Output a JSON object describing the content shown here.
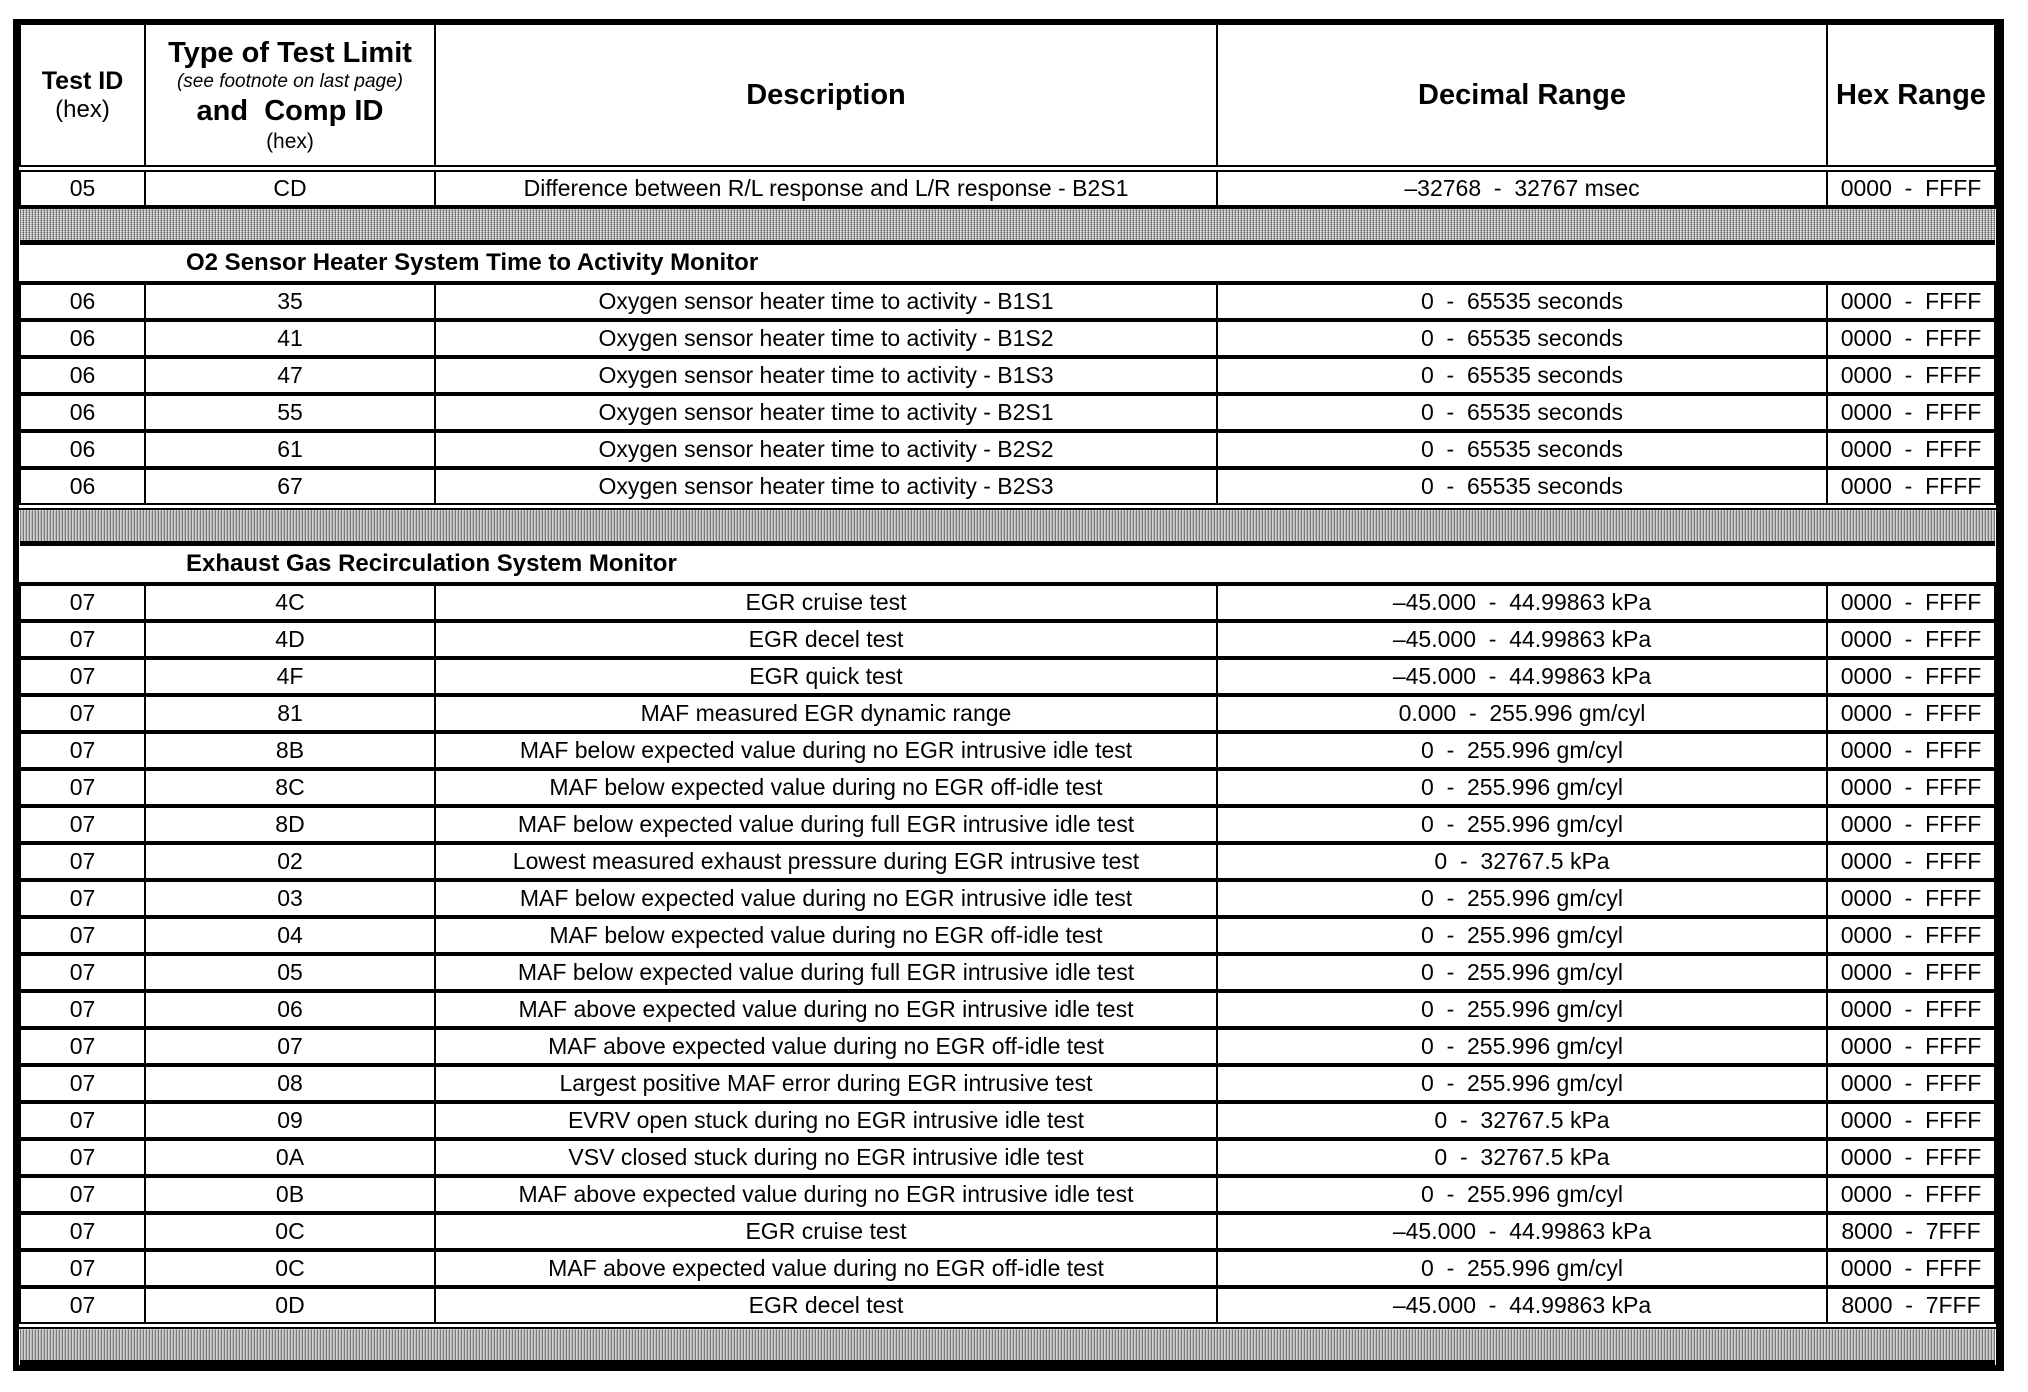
{
  "header": {
    "test_id": "Test ID",
    "test_id_sub": "(hex)",
    "type_limit": "Type of Test Limit",
    "type_limit_note": "(see footnote on last page)",
    "comp_id": "and  Comp ID",
    "comp_id_sub": "(hex)",
    "description": "Description",
    "decimal_range": "Decimal Range",
    "hex_range": "Hex Range"
  },
  "top_rows": [
    {
      "tid": "05",
      "cid": "CD",
      "desc": "Difference between R/L response and L/R response - B2S1",
      "dec": "–32768  -  32767 msec",
      "hex": "0000  -  FFFF"
    }
  ],
  "sections": [
    {
      "title": "O2 Sensor Heater System Time to Activity Monitor",
      "rows": [
        {
          "tid": "06",
          "cid": "35",
          "desc": "Oxygen sensor heater time to activity - B1S1",
          "dec": "0  -  65535 seconds",
          "hex": "0000  -  FFFF"
        },
        {
          "tid": "06",
          "cid": "41",
          "desc": "Oxygen sensor heater time to activity - B1S2",
          "dec": "0  -  65535 seconds",
          "hex": "0000  -  FFFF"
        },
        {
          "tid": "06",
          "cid": "47",
          "desc": "Oxygen sensor heater time to activity - B1S3",
          "dec": "0  -  65535 seconds",
          "hex": "0000  -  FFFF"
        },
        {
          "tid": "06",
          "cid": "55",
          "desc": "Oxygen sensor heater time to activity - B2S1",
          "dec": "0  -  65535 seconds",
          "hex": "0000  -  FFFF"
        },
        {
          "tid": "06",
          "cid": "61",
          "desc": "Oxygen sensor heater time to activity - B2S2",
          "dec": "0  -  65535 seconds",
          "hex": "0000  -  FFFF"
        },
        {
          "tid": "06",
          "cid": "67",
          "desc": "Oxygen sensor heater time to activity - B2S3",
          "dec": "0  -  65535 seconds",
          "hex": "0000  -  FFFF"
        }
      ]
    },
    {
      "title": "Exhaust Gas Recirculation System Monitor",
      "rows": [
        {
          "tid": "07",
          "cid": "4C",
          "desc": "EGR cruise test",
          "dec": "–45.000  -  44.99863 kPa",
          "hex": "0000  -  FFFF"
        },
        {
          "tid": "07",
          "cid": "4D",
          "desc": "EGR decel test",
          "dec": "–45.000  -  44.99863 kPa",
          "hex": "0000  -  FFFF"
        },
        {
          "tid": "07",
          "cid": "4F",
          "desc": "EGR quick test",
          "dec": "–45.000  -  44.99863 kPa",
          "hex": "0000  -  FFFF"
        },
        {
          "tid": "07",
          "cid": "81",
          "desc": "MAF measured EGR dynamic range",
          "dec": "0.000  -  255.996 gm/cyl",
          "hex": "0000  -  FFFF"
        },
        {
          "tid": "07",
          "cid": "8B",
          "desc": "MAF below expected value during no EGR intrusive idle test",
          "dec": "0  -  255.996 gm/cyl",
          "hex": "0000  -  FFFF"
        },
        {
          "tid": "07",
          "cid": "8C",
          "desc": "MAF below expected value during no EGR off-idle test",
          "dec": "0  -  255.996 gm/cyl",
          "hex": "0000  -  FFFF"
        },
        {
          "tid": "07",
          "cid": "8D",
          "desc": "MAF below expected value during full EGR intrusive idle test",
          "dec": "0  -  255.996 gm/cyl",
          "hex": "0000  -  FFFF"
        },
        {
          "tid": "07",
          "cid": "02",
          "desc": "Lowest measured exhaust pressure during EGR intrusive test",
          "dec": "0  -  32767.5 kPa",
          "hex": "0000  -  FFFF"
        },
        {
          "tid": "07",
          "cid": "03",
          "desc": "MAF below expected value during no EGR intrusive idle test",
          "dec": "0  -  255.996 gm/cyl",
          "hex": "0000  -  FFFF"
        },
        {
          "tid": "07",
          "cid": "04",
          "desc": "MAF below expected value during no EGR off-idle test",
          "dec": "0  -  255.996 gm/cyl",
          "hex": "0000  -  FFFF"
        },
        {
          "tid": "07",
          "cid": "05",
          "desc": "MAF below expected value during full EGR intrusive idle test",
          "dec": "0  -  255.996 gm/cyl",
          "hex": "0000  -  FFFF"
        },
        {
          "tid": "07",
          "cid": "06",
          "desc": "MAF above expected value during no EGR intrusive idle test",
          "dec": "0  -  255.996 gm/cyl",
          "hex": "0000  -  FFFF"
        },
        {
          "tid": "07",
          "cid": "07",
          "desc": "MAF above expected value during no EGR off-idle test",
          "dec": "0  -  255.996 gm/cyl",
          "hex": "0000  -  FFFF"
        },
        {
          "tid": "07",
          "cid": "08",
          "desc": "Largest positive MAF error during EGR intrusive test",
          "dec": "0  -  255.996 gm/cyl",
          "hex": "0000  -  FFFF"
        },
        {
          "tid": "07",
          "cid": "09",
          "desc": "EVRV open stuck during no EGR intrusive idle test",
          "dec": "0  -  32767.5 kPa",
          "hex": "0000  -  FFFF"
        },
        {
          "tid": "07",
          "cid": "0A",
          "desc": "VSV closed stuck during no EGR intrusive idle test",
          "dec": "0  -  32767.5 kPa",
          "hex": "0000  -  FFFF"
        },
        {
          "tid": "07",
          "cid": "0B",
          "desc": "MAF above expected value during no EGR intrusive idle test",
          "dec": "0  -  255.996 gm/cyl",
          "hex": "0000  -  FFFF"
        },
        {
          "tid": "07",
          "cid": "0C",
          "desc": "EGR cruise test",
          "dec": "–45.000  -  44.99863 kPa",
          "hex": "8000  -  7FFF"
        },
        {
          "tid": "07",
          "cid": "0C",
          "desc": "MAF above expected value during no EGR off-idle test",
          "dec": "0  -  255.996 gm/cyl",
          "hex": "0000  -  FFFF"
        },
        {
          "tid": "07",
          "cid": "0D",
          "desc": "EGR decel test",
          "dec": "–45.000  -  44.99863 kPa",
          "hex": "8000  -  7FFF"
        }
      ]
    }
  ]
}
